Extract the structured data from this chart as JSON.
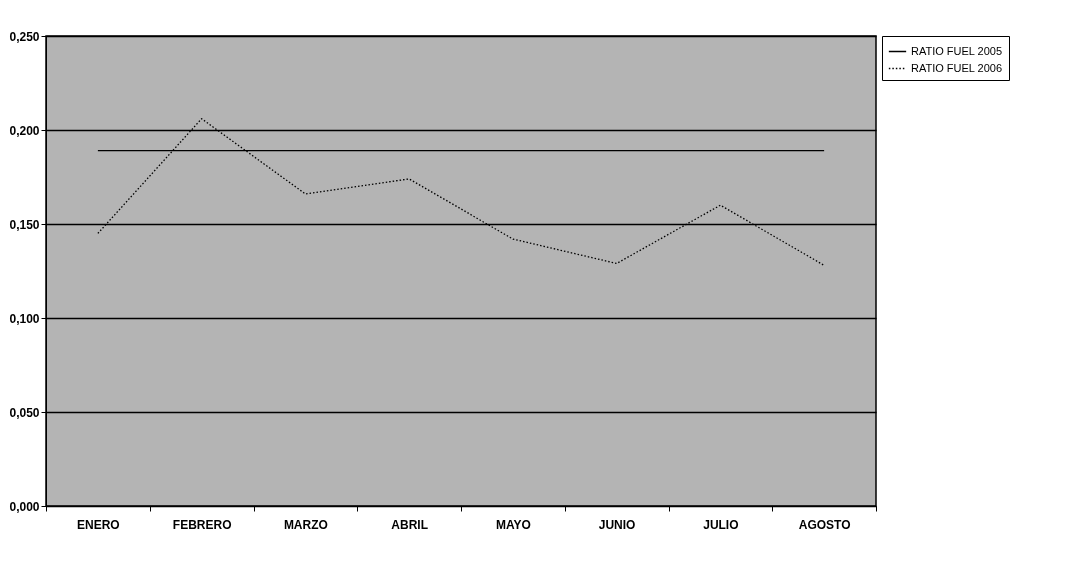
{
  "chart_data": {
    "type": "line",
    "categories": [
      "ENERO",
      "FEBRERO",
      "MARZO",
      "ABRIL",
      "MAYO",
      "JUNIO",
      "JULIO",
      "AGOSTO"
    ],
    "series": [
      {
        "name": "RATIO FUEL 2005",
        "color": "#000000",
        "line_style": "solid",
        "values": [
          0.189,
          0.189,
          0.189,
          0.189,
          0.189,
          0.189,
          0.189,
          0.189
        ]
      },
      {
        "name": "RATIO FUEL 2006",
        "color": "#000000",
        "line_style": "dotted",
        "values": [
          0.145,
          0.206,
          0.166,
          0.174,
          0.142,
          0.129,
          0.16,
          0.128
        ]
      }
    ],
    "ylim": [
      0,
      0.25
    ],
    "yticks": [
      {
        "value": 0,
        "label": "0,000"
      },
      {
        "value": 0.05,
        "label": "0,050"
      },
      {
        "value": 0.1,
        "label": "0,100"
      },
      {
        "value": 0.15,
        "label": "0,150"
      },
      {
        "value": 0.2,
        "label": "0,200"
      },
      {
        "value": 0.25,
        "label": "0,250"
      }
    ],
    "grid": "y",
    "legend": "right",
    "marker": "none"
  }
}
